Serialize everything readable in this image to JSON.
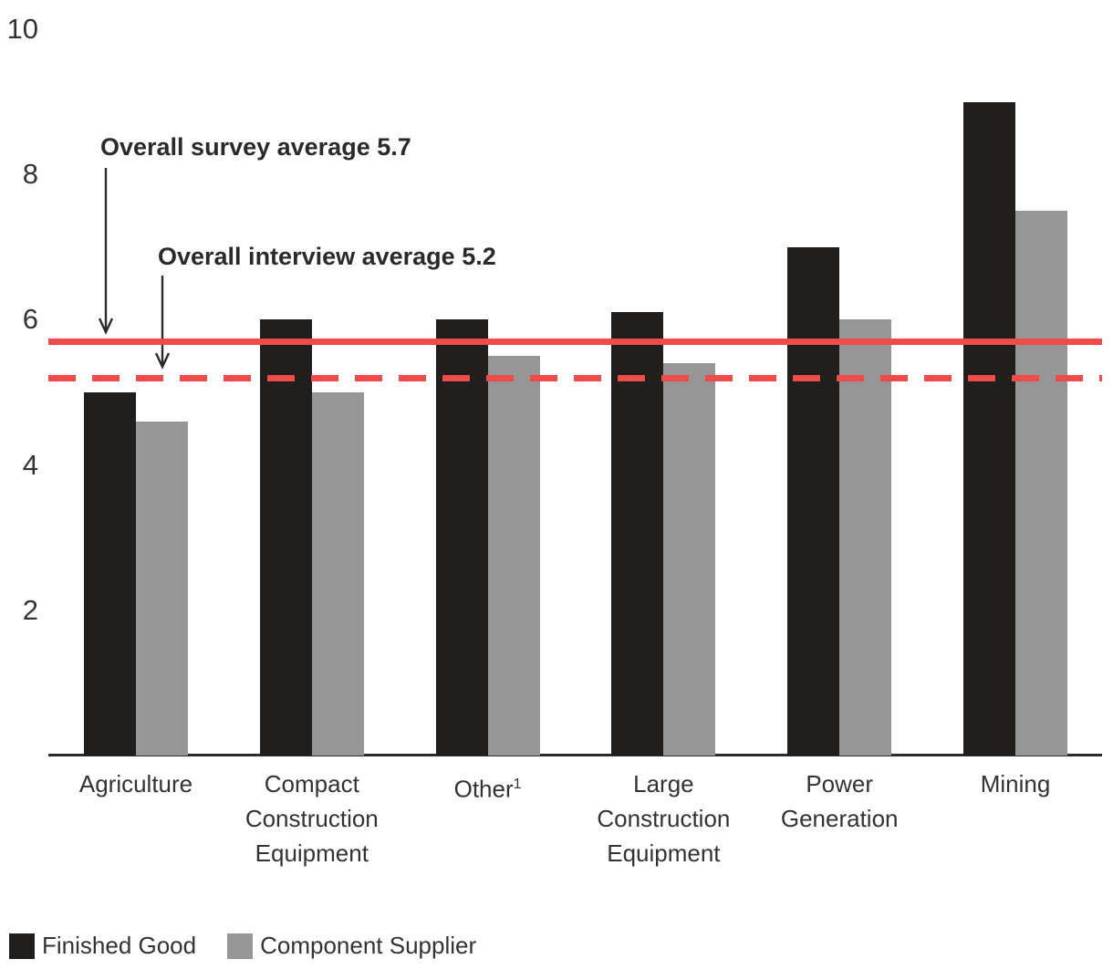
{
  "chart_data": {
    "type": "bar",
    "title": "",
    "xlabel": "",
    "ylabel": "",
    "grid": false,
    "legend_position": "bottom-left",
    "y_axis": {
      "min": 0,
      "max": 10,
      "ticks": [
        2,
        4,
        6,
        8,
        10
      ]
    },
    "categories": [
      {
        "label": "Agriculture",
        "lines": [
          "Agriculture"
        ],
        "sup": ""
      },
      {
        "label": "Compact Construction Equipment",
        "lines": [
          "Compact",
          "Construction",
          "Equipment"
        ],
        "sup": ""
      },
      {
        "label": "Other",
        "lines": [
          "Other"
        ],
        "sup": "1"
      },
      {
        "label": "Large Construction Equipment",
        "lines": [
          "Large",
          "Construction",
          "Equipment"
        ],
        "sup": ""
      },
      {
        "label": "Power Generation",
        "lines": [
          "Power",
          "Generation"
        ],
        "sup": ""
      },
      {
        "label": "Mining",
        "lines": [
          "Mining"
        ],
        "sup": ""
      }
    ],
    "series": [
      {
        "name": "Finished Good",
        "color": "#211e1e",
        "values": [
          5.0,
          6.0,
          6.0,
          6.1,
          7.0,
          9.0
        ]
      },
      {
        "name": "Component Supplier",
        "color": "#969696",
        "values": [
          4.6,
          5.0,
          5.5,
          5.4,
          6.0,
          7.5
        ]
      }
    ],
    "reference_lines": [
      {
        "label": "Overall survey average 5.7",
        "value": 5.7,
        "style": "solid",
        "color": "#ee4b49"
      },
      {
        "label": "Overall interview average 5.2",
        "value": 5.2,
        "style": "dashed",
        "color": "#ee4b49"
      }
    ]
  },
  "colors": {
    "axis": "#2b2b2b",
    "text": "#333333",
    "annotation": "#2b2a2a"
  }
}
